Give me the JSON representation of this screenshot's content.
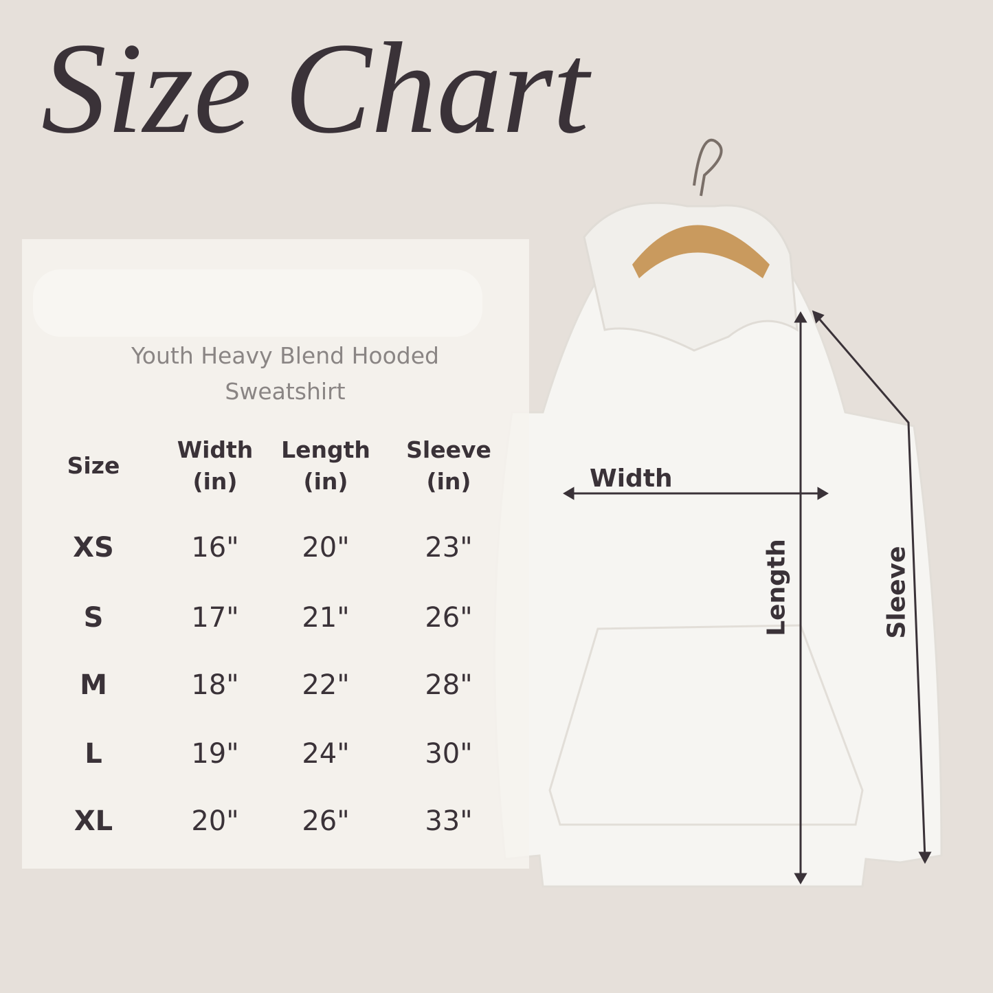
{
  "header": {
    "title": "Size Chart",
    "subtitle": "Youth Heavy Blend Hooded Sweatshirt"
  },
  "table": {
    "columns": [
      "Size",
      "Width (in)",
      "Length (in)",
      "Sleeve (in)"
    ],
    "rows": [
      [
        "XS",
        "16\"",
        "20\"",
        "23\""
      ],
      [
        "S",
        "17\"",
        "21\"",
        "26\""
      ],
      [
        "M",
        "18\"",
        "22\"",
        "28\""
      ],
      [
        "L",
        "19\"",
        "24\"",
        "30\""
      ],
      [
        "XL",
        "20\"",
        "26\"",
        "33\""
      ]
    ]
  },
  "diagram": {
    "width_label": "Width",
    "length_label": "Length",
    "sleeve_label": "Sleeve"
  }
}
